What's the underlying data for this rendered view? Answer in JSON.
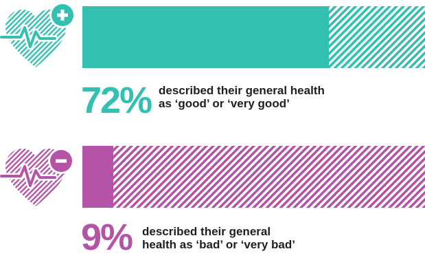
{
  "colors": {
    "good": "#33c0b1",
    "bad": "#b553a6",
    "text": "#1f1f1f"
  },
  "icons": {
    "good": "heart-plus-icon",
    "bad": "heart-minus-icon"
  },
  "chart_data": [
    {
      "type": "bar",
      "orientation": "horizontal",
      "categories": [
        "good or very good"
      ],
      "values": [
        72
      ],
      "unit": "%",
      "xlim": [
        0,
        100
      ],
      "grid": false,
      "title": "",
      "xlabel": "",
      "ylabel": "",
      "annotation": {
        "percent_text": "72%",
        "line1": "described their general health",
        "line2": "as ‘good’ or ‘very good’"
      }
    },
    {
      "type": "bar",
      "orientation": "horizontal",
      "categories": [
        "bad or very bad"
      ],
      "values": [
        9
      ],
      "unit": "%",
      "xlim": [
        0,
        100
      ],
      "grid": false,
      "title": "",
      "xlabel": "",
      "ylabel": "",
      "annotation": {
        "percent_text": "9%",
        "line1": "described their general",
        "line2": "health as ‘bad’ or ‘very bad’"
      }
    }
  ]
}
